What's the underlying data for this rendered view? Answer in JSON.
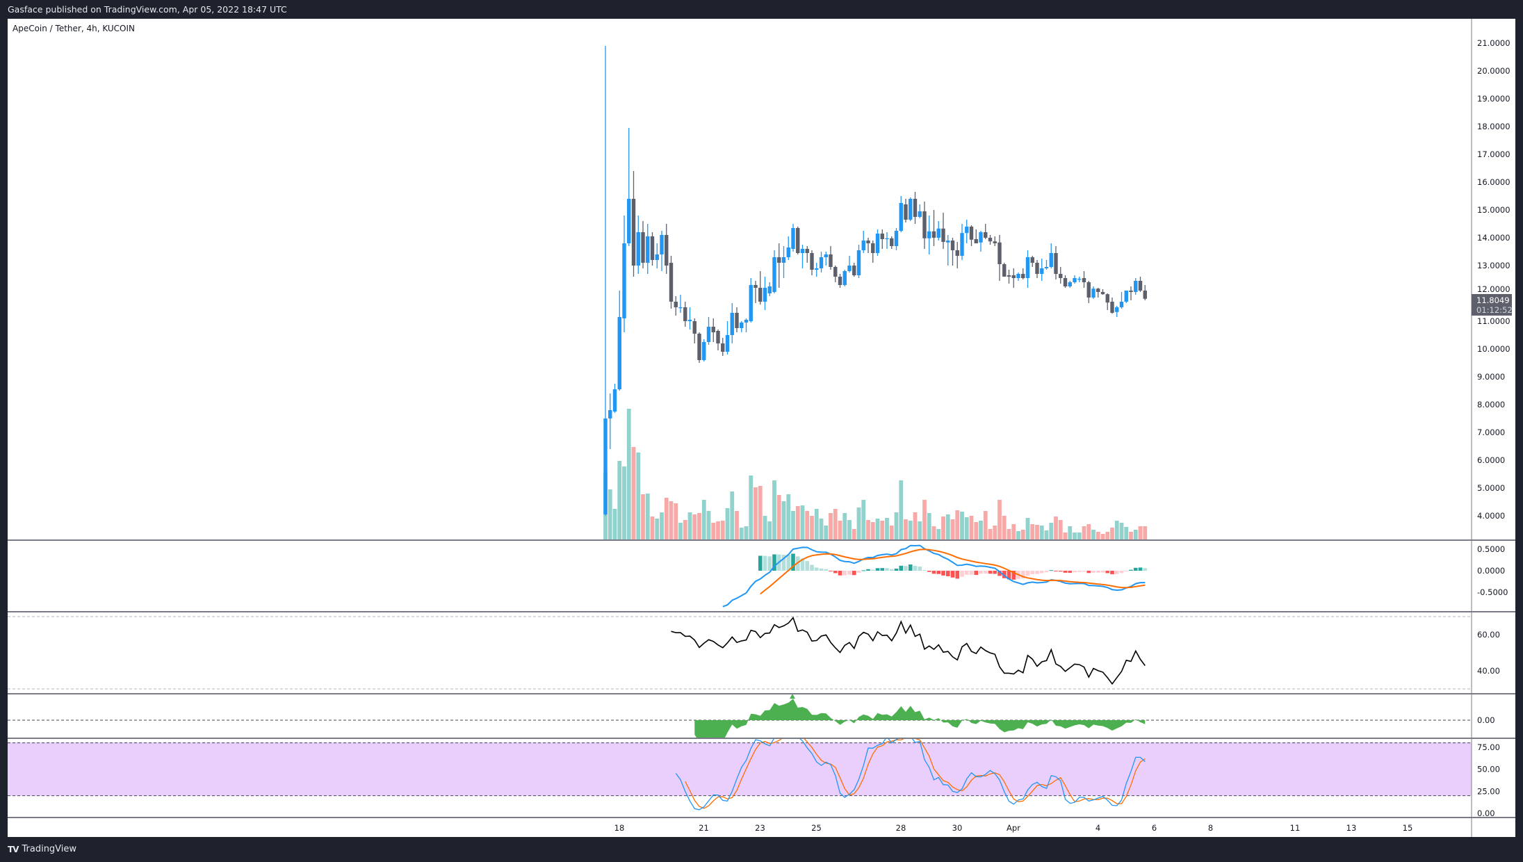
{
  "header": {
    "published": "Gasface published on TradingView.com, Apr 05, 2022 18:47 UTC"
  },
  "symbol": {
    "title": "ApeCoin / Tether, 4h, KUCOIN"
  },
  "footer": {
    "brand": "TradingView",
    "logo": "TV"
  },
  "colors": {
    "up": "#2196f3",
    "down": "#5d606b",
    "vol_up": "#92d2cc",
    "vol_down": "#f7a9a7",
    "macd": "#2196f3",
    "signal": "#ff6d00",
    "hist_up_strong": "#26a69a",
    "hist_up_weak": "#b2dfdb",
    "hist_down_weak": "#ffcdd2",
    "hist_down_strong": "#ff5252",
    "rsi": "#000000",
    "momentum": "#4caf50",
    "stoch_k": "#2196f3",
    "stoch_d": "#ff6d00",
    "stoch_band": "#eacffd",
    "last_price_bg": "#5d606b"
  },
  "last_price": {
    "value": "11.8049",
    "countdown": "01:12:52"
  },
  "chart_data": {
    "type": "candlestick",
    "interval": "4h",
    "start": "2022-03-17T12:00:00Z",
    "price_axis": {
      "ticks": [
        "4.0000",
        "5.0000",
        "6.0000",
        "7.0000",
        "8.0000",
        "9.0000",
        "10.0000",
        "11.0000",
        "12.0000",
        "13.0000",
        "14.0000",
        "15.0000",
        "16.0000",
        "17.0000",
        "18.0000",
        "19.0000",
        "20.0000",
        "21.0000"
      ],
      "range": [
        3.4,
        21.4
      ]
    },
    "time_axis": {
      "ticks": [
        {
          "label": "18",
          "date": "2022-03-18"
        },
        {
          "label": "21",
          "date": "2022-03-21"
        },
        {
          "label": "23",
          "date": "2022-03-23"
        },
        {
          "label": "25",
          "date": "2022-03-25"
        },
        {
          "label": "28",
          "date": "2022-03-28"
        },
        {
          "label": "30",
          "date": "2022-03-30"
        },
        {
          "label": "Apr",
          "date": "2022-04-01"
        },
        {
          "label": "4",
          "date": "2022-04-04"
        },
        {
          "label": "6",
          "date": "2022-04-06"
        },
        {
          "label": "8",
          "date": "2022-04-08"
        },
        {
          "label": "11",
          "date": "2022-04-11"
        },
        {
          "label": "13",
          "date": "2022-04-13"
        },
        {
          "label": "15",
          "date": "2022-04-15"
        }
      ]
    },
    "ohlc": [
      [
        4.05,
        20.9,
        4.0,
        7.5
      ],
      [
        7.5,
        8.4,
        6.4,
        7.8
      ],
      [
        7.75,
        8.75,
        7.7,
        8.55
      ],
      [
        8.55,
        12.1,
        8.5,
        11.15
      ],
      [
        11.1,
        14.8,
        10.6,
        13.8
      ],
      [
        13.8,
        17.95,
        13.7,
        15.4
      ],
      [
        15.4,
        16.4,
        12.6,
        13.0
      ],
      [
        13.0,
        14.8,
        12.7,
        14.2
      ],
      [
        14.2,
        14.6,
        12.9,
        13.1
      ],
      [
        13.1,
        14.5,
        12.7,
        14.05
      ],
      [
        14.05,
        14.2,
        13.0,
        13.2
      ],
      [
        13.2,
        13.8,
        12.9,
        13.4
      ],
      [
        13.4,
        14.25,
        12.8,
        14.1
      ],
      [
        14.1,
        14.5,
        12.7,
        13.0
      ],
      [
        13.1,
        13.35,
        11.45,
        11.7
      ],
      [
        11.7,
        11.9,
        11.2,
        11.5
      ],
      [
        11.5,
        11.95,
        11.3,
        11.5
      ],
      [
        11.5,
        11.7,
        10.8,
        11.0
      ],
      [
        11.0,
        11.5,
        10.7,
        11.05
      ],
      [
        11.0,
        11.1,
        10.2,
        10.55
      ],
      [
        10.55,
        10.6,
        9.5,
        9.6
      ],
      [
        9.6,
        10.35,
        9.55,
        10.25
      ],
      [
        10.25,
        11.15,
        10.15,
        10.8
      ],
      [
        10.8,
        11.1,
        10.25,
        10.6
      ],
      [
        10.65,
        10.7,
        9.95,
        10.2
      ],
      [
        10.2,
        10.4,
        9.75,
        9.9
      ],
      [
        9.9,
        11.0,
        9.8,
        10.5
      ],
      [
        10.5,
        11.65,
        10.2,
        11.3
      ],
      [
        11.3,
        11.5,
        10.6,
        10.75
      ],
      [
        10.75,
        11.0,
        10.6,
        10.95
      ],
      [
        10.95,
        11.1,
        10.6,
        11.05
      ],
      [
        11.0,
        12.55,
        10.95,
        12.3
      ],
      [
        12.3,
        12.45,
        11.65,
        12.2
      ],
      [
        12.2,
        12.8,
        11.6,
        11.7
      ],
      [
        11.7,
        12.6,
        11.4,
        12.2
      ],
      [
        12.0,
        12.4,
        11.9,
        12.25
      ],
      [
        12.05,
        13.55,
        12.0,
        13.3
      ],
      [
        13.3,
        13.8,
        12.2,
        13.1
      ],
      [
        13.1,
        13.7,
        12.55,
        13.3
      ],
      [
        13.3,
        14.05,
        13.2,
        13.65
      ],
      [
        13.6,
        14.5,
        13.5,
        14.35
      ],
      [
        14.35,
        14.4,
        13.4,
        13.45
      ],
      [
        13.45,
        13.75,
        12.9,
        13.6
      ],
      [
        13.6,
        13.7,
        13.1,
        13.45
      ],
      [
        13.45,
        13.55,
        12.65,
        12.85
      ],
      [
        12.85,
        13.1,
        12.6,
        12.9
      ],
      [
        12.9,
        13.5,
        12.75,
        13.3
      ],
      [
        13.3,
        13.5,
        13.0,
        13.4
      ],
      [
        13.4,
        13.7,
        12.85,
        12.95
      ],
      [
        12.95,
        13.0,
        12.4,
        12.6
      ],
      [
        12.6,
        12.7,
        12.2,
        12.3
      ],
      [
        12.3,
        12.85,
        12.25,
        12.8
      ],
      [
        12.8,
        13.35,
        12.75,
        13.0
      ],
      [
        13.0,
        13.1,
        12.6,
        12.65
      ],
      [
        12.65,
        13.75,
        12.55,
        13.55
      ],
      [
        13.55,
        14.25,
        13.45,
        13.9
      ],
      [
        13.9,
        14.0,
        13.45,
        13.8
      ],
      [
        13.8,
        13.9,
        13.1,
        13.45
      ],
      [
        13.45,
        14.3,
        13.35,
        14.15
      ],
      [
        14.15,
        14.3,
        13.6,
        13.95
      ],
      [
        13.95,
        14.2,
        13.6,
        13.98
      ],
      [
        13.98,
        14.05,
        13.6,
        13.7
      ],
      [
        13.7,
        14.35,
        13.55,
        14.25
      ],
      [
        14.25,
        15.5,
        14.2,
        15.25
      ],
      [
        15.2,
        15.4,
        14.55,
        14.65
      ],
      [
        14.65,
        15.45,
        14.6,
        15.4
      ],
      [
        15.4,
        15.65,
        14.5,
        14.75
      ],
      [
        14.75,
        15.2,
        14.7,
        14.95
      ],
      [
        14.95,
        15.3,
        13.6,
        13.98
      ],
      [
        13.98,
        14.8,
        13.4,
        14.23
      ],
      [
        14.23,
        15.0,
        13.7,
        14.0
      ],
      [
        14.0,
        14.6,
        13.9,
        14.33
      ],
      [
        14.33,
        14.9,
        13.6,
        13.85
      ],
      [
        13.83,
        14.1,
        13.0,
        13.9
      ],
      [
        13.9,
        14.0,
        13.0,
        13.55
      ],
      [
        13.55,
        13.85,
        12.9,
        13.35
      ],
      [
        13.35,
        14.5,
        13.2,
        14.17
      ],
      [
        14.17,
        14.65,
        13.8,
        14.4
      ],
      [
        14.4,
        14.45,
        13.7,
        13.93
      ],
      [
        13.95,
        14.3,
        13.8,
        13.8
      ],
      [
        13.83,
        14.25,
        13.5,
        14.2
      ],
      [
        14.2,
        14.5,
        13.95,
        14.0
      ],
      [
        14.0,
        14.1,
        13.75,
        13.87
      ],
      [
        13.87,
        14.05,
        13.7,
        13.8
      ],
      [
        13.83,
        14.1,
        12.45,
        13.05
      ],
      [
        13.05,
        13.1,
        12.6,
        12.6
      ],
      [
        12.65,
        12.85,
        12.35,
        12.6
      ],
      [
        12.65,
        12.9,
        12.2,
        12.55
      ],
      [
        12.55,
        12.75,
        12.45,
        12.7
      ],
      [
        12.7,
        12.9,
        12.5,
        12.55
      ],
      [
        12.55,
        13.55,
        12.2,
        13.3
      ],
      [
        13.3,
        13.35,
        12.95,
        13.1
      ],
      [
        13.1,
        13.2,
        12.55,
        12.7
      ],
      [
        12.7,
        13.25,
        12.45,
        12.9
      ],
      [
        12.9,
        13.2,
        12.85,
        12.95
      ],
      [
        12.95,
        13.8,
        12.9,
        13.45
      ],
      [
        13.45,
        13.7,
        12.5,
        12.7
      ],
      [
        12.7,
        12.95,
        12.35,
        12.55
      ],
      [
        12.55,
        12.65,
        12.2,
        12.25
      ],
      [
        12.25,
        12.45,
        12.2,
        12.4
      ],
      [
        12.4,
        12.65,
        12.35,
        12.55
      ],
      [
        12.52,
        12.6,
        12.4,
        12.52
      ],
      [
        12.55,
        12.8,
        12.2,
        12.4
      ],
      [
        12.4,
        12.45,
        11.65,
        11.85
      ],
      [
        11.85,
        12.25,
        11.8,
        12.17
      ],
      [
        12.17,
        12.2,
        11.85,
        12.05
      ],
      [
        12.05,
        12.15,
        11.95,
        11.97
      ],
      [
        11.97,
        12.0,
        11.4,
        11.67
      ],
      [
        11.7,
        11.85,
        11.27,
        11.3
      ],
      [
        11.33,
        11.55,
        11.15,
        11.5
      ],
      [
        11.5,
        12.05,
        11.45,
        11.7
      ],
      [
        11.7,
        12.1,
        11.65,
        12.1
      ],
      [
        12.1,
        12.25,
        11.75,
        12.05
      ],
      [
        12.05,
        12.55,
        11.95,
        12.45
      ],
      [
        12.45,
        12.6,
        12.05,
        12.1
      ],
      [
        12.1,
        12.3,
        11.75,
        11.8049
      ]
    ],
    "volume_relative": [
      98,
      73,
      45,
      114,
      106,
      189,
      134,
      126,
      66,
      67,
      34,
      31,
      40,
      61,
      56,
      53,
      25,
      29,
      40,
      37,
      39,
      58,
      42,
      25,
      27,
      28,
      46,
      70,
      42,
      18,
      20,
      93,
      76,
      78,
      35,
      27,
      86,
      65,
      56,
      66,
      42,
      49,
      50,
      42,
      35,
      45,
      31,
      21,
      39,
      45,
      28,
      39,
      29,
      16,
      47,
      58,
      29,
      26,
      31,
      28,
      32,
      21,
      40,
      86,
      30,
      28,
      40,
      27,
      58,
      39,
      20,
      16,
      34,
      37,
      30,
      43,
      41,
      33,
      35,
      26,
      28,
      42,
      16,
      21,
      58,
      35,
      16,
      23,
      13,
      15,
      32,
      23,
      22,
      21,
      14,
      25,
      34,
      29,
      11,
      20,
      11,
      11,
      20,
      23,
      15,
      12,
      9,
      12,
      18,
      28,
      25,
      19,
      12,
      15,
      20,
      20
    ],
    "indicators": {
      "macd": {
        "fast": 12,
        "slow": 26,
        "signal": 9,
        "ticks": [
          "0.5000",
          "0.0000",
          "-0.5000"
        ]
      },
      "rsi": {
        "length": 14,
        "ticks": [
          "60.00",
          "40.00"
        ],
        "bands": [
          70,
          30
        ]
      },
      "momentum": {
        "length": 20,
        "ticks": [
          "0.00"
        ]
      },
      "stochastic": {
        "k": 14,
        "smooth_k": 3,
        "d": 3,
        "ticks": [
          "75.00",
          "50.00",
          "25.00",
          "0.00"
        ],
        "bands": [
          80,
          20
        ]
      }
    }
  }
}
